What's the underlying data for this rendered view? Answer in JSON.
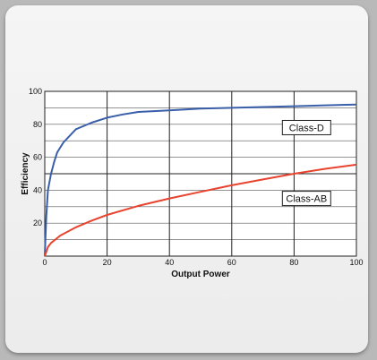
{
  "chart_data": {
    "type": "line",
    "title": "",
    "xlabel": "Output Power",
    "ylabel": "Efficiency",
    "xlim": [
      0,
      100
    ],
    "ylim": [
      0,
      100
    ],
    "x_ticks": [
      0,
      20,
      40,
      60,
      80,
      100
    ],
    "y_ticks": [
      20,
      40,
      60,
      80,
      100
    ],
    "grid": true,
    "series": [
      {
        "name": "Class-D",
        "color": "#3a5faa",
        "x": [
          0,
          0.5,
          1,
          2,
          3,
          4,
          6,
          8,
          10,
          15,
          20,
          25,
          30,
          40,
          50,
          60,
          70,
          80,
          90,
          100
        ],
        "y": [
          0,
          24,
          40,
          50,
          57,
          63,
          69,
          73,
          77,
          81,
          84,
          86,
          87.5,
          88.5,
          89.5,
          90,
          90.5,
          91,
          91.5,
          92
        ]
      },
      {
        "name": "Class-AB",
        "color": "#e8432f",
        "x": [
          0,
          1,
          2,
          5,
          10,
          15,
          20,
          30,
          40,
          50,
          60,
          70,
          80,
          90,
          100
        ],
        "y": [
          0,
          5.5,
          8,
          12.5,
          17.5,
          21.5,
          25,
          30.5,
          35,
          39,
          43,
          46.5,
          50,
          53,
          55.5
        ]
      }
    ]
  }
}
